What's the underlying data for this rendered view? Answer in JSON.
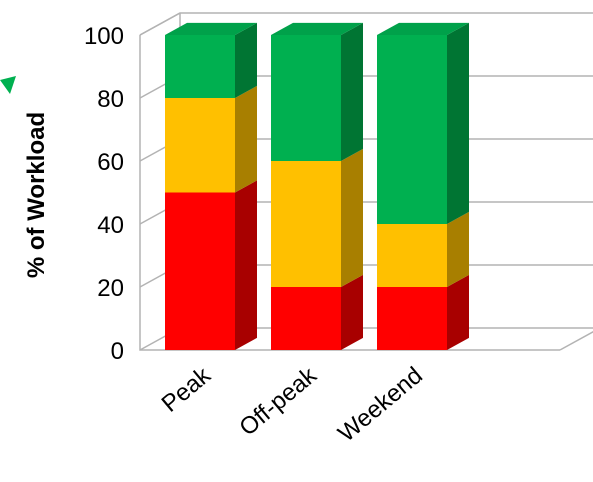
{
  "chart_data": {
    "type": "bar",
    "stacked": true,
    "three_d": true,
    "categories": [
      "Peak",
      "Off-peak",
      "Weekend"
    ],
    "series": [
      {
        "values": [
          50,
          20,
          20
        ],
        "color": "#ff0000",
        "side_color": "#a80000"
      },
      {
        "values": [
          30,
          40,
          20
        ],
        "color": "#ffc000",
        "side_color": "#a87f00"
      },
      {
        "values": [
          20,
          40,
          60
        ],
        "color": "#00b050",
        "side_color": "#007533"
      }
    ],
    "ylabel": "% of Workload",
    "ylim": [
      0,
      100
    ],
    "yticks": [
      0,
      20,
      40,
      60,
      80,
      100
    ],
    "grid": true,
    "legend": "none"
  },
  "decorations": {
    "accent_arrow_color": "#00b050"
  }
}
